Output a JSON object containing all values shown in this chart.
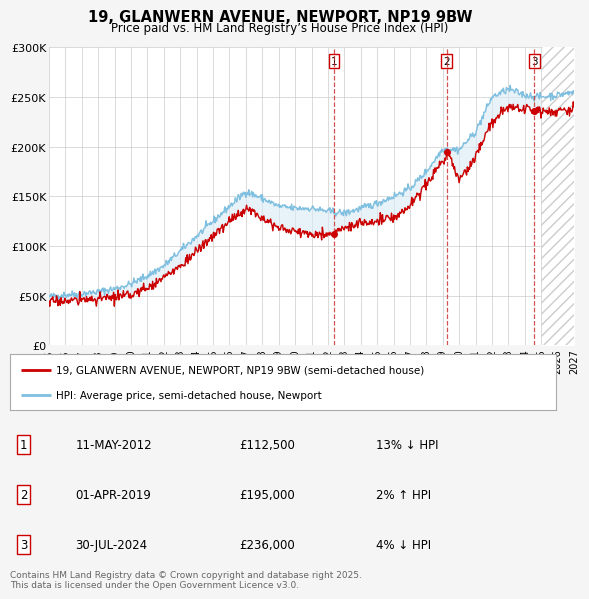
{
  "title": "19, GLANWERN AVENUE, NEWPORT, NP19 9BW",
  "subtitle": "Price paid vs. HM Land Registry’s House Price Index (HPI)",
  "ylabel_ticks": [
    "£0",
    "£50K",
    "£100K",
    "£150K",
    "£200K",
    "£250K",
    "£300K"
  ],
  "ylim": [
    0,
    300000
  ],
  "xlim_start": 1995,
  "xlim_end": 2027,
  "transactions": [
    {
      "num": 1,
      "x": 2012.37,
      "price": 112500,
      "date": "11-MAY-2012",
      "price_str": "£112,500",
      "pct": "13%",
      "dir": "↓"
    },
    {
      "num": 2,
      "x": 2019.25,
      "price": 195000,
      "date": "01-APR-2019",
      "price_str": "£195,000",
      "pct": "2%",
      "dir": "↑"
    },
    {
      "num": 3,
      "x": 2024.58,
      "price": 236000,
      "date": "30-JUL-2024",
      "price_str": "£236,000",
      "pct": "4%",
      "dir": "↓"
    }
  ],
  "hatch_start": 2025.0,
  "line_color_red": "#cc0000",
  "line_color_blue": "#7fbfdf",
  "fill_color_blue": "#daeaf5",
  "vline_color": "#cc3333",
  "legend_label_red": "19, GLANWERN AVENUE, NEWPORT, NP19 9BW (semi-detached house)",
  "legend_label_blue": "HPI: Average price, semi-detached house, Newport",
  "footer": "Contains HM Land Registry data © Crown copyright and database right 2025.\nThis data is licensed under the Open Government Licence v3.0.",
  "bg_color": "#f5f5f5",
  "plot_bg": "#ffffff",
  "grid_color": "#cccccc"
}
